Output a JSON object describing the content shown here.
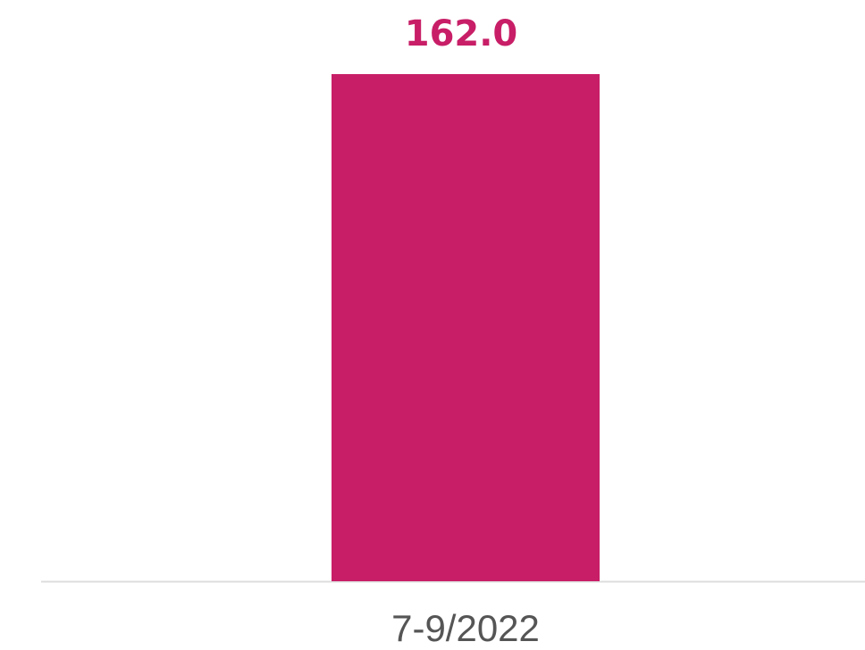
{
  "chart_data": {
    "type": "bar",
    "categories": [
      "7-9/2022"
    ],
    "values": [
      162
    ],
    "value_labels": [
      "162.0"
    ],
    "color": "#c81e67"
  }
}
